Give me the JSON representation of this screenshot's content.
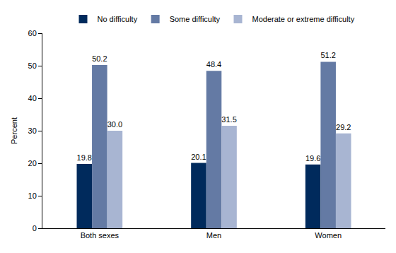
{
  "chart_data": {
    "type": "bar",
    "y_label": "Percent",
    "categories": [
      "Both sexes",
      "Men",
      "Women"
    ],
    "series": [
      {
        "name": "No difficulty",
        "color": "#002a5c",
        "values": [
          19.8,
          20.1,
          19.6
        ]
      },
      {
        "name": "Some difficulty",
        "color": "#647aa4",
        "values": [
          50.2,
          48.4,
          51.2
        ]
      },
      {
        "name": "Moderate or extreme difficulty",
        "color": "#a8b5d2",
        "values": [
          30.0,
          31.5,
          29.2
        ],
        "value_labels": [
          "30.0",
          "31.5",
          "29.2"
        ]
      }
    ],
    "ylim": [
      0,
      60
    ],
    "yticks": [
      0,
      10,
      20,
      30,
      40,
      50,
      60
    ],
    "grid": false,
    "legend": "top",
    "data_labels": true
  }
}
